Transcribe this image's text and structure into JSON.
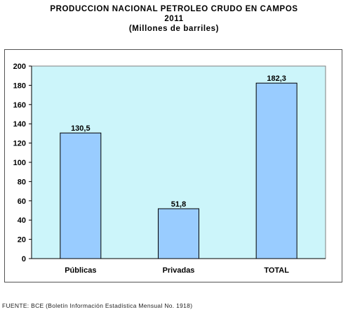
{
  "chart_data": {
    "type": "bar",
    "title": [
      "PRODUCCION NACIONAL PETROLEO CRUDO EN CAMPOS",
      "2011",
      "(Millones de barriles)"
    ],
    "categories": [
      "Públicas",
      "Privadas",
      "TOTAL"
    ],
    "values": [
      130.5,
      51.8,
      182.3
    ],
    "data_labels": [
      "130,5",
      "51,8",
      "182,3"
    ],
    "ylim": [
      0,
      200
    ],
    "yticks": [
      0,
      20,
      40,
      60,
      80,
      100,
      120,
      140,
      160,
      180,
      200
    ],
    "grid": false,
    "colors": {
      "plot_bg": "#ccf5fa",
      "bar_fill": "#99ccff",
      "bar_stroke": "#000000"
    }
  },
  "source_note": "FUENTE: BCE (Boletín Información Estadística Mensual No. 1918)"
}
